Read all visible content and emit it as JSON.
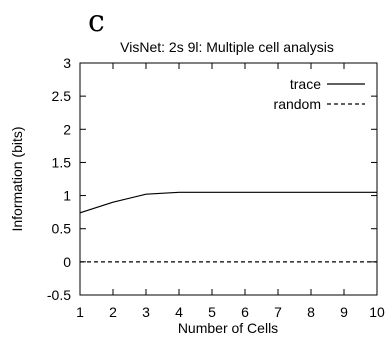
{
  "panel_letter": "c",
  "chart_data": {
    "type": "line",
    "title": "VisNet: 2s 9l: Multiple cell analysis",
    "xlabel": "Number of Cells",
    "ylabel": "Information (bits)",
    "xlim": [
      1,
      10
    ],
    "ylim": [
      -0.5,
      3
    ],
    "xticks": [
      1,
      2,
      3,
      4,
      5,
      6,
      7,
      8,
      9,
      10
    ],
    "yticks": [
      -0.5,
      0,
      0.5,
      1,
      1.5,
      2,
      2.5,
      3
    ],
    "ytick_labels": [
      "-0.5",
      "0",
      "0.5",
      "1",
      "1.5",
      "2",
      "2.5",
      "3"
    ],
    "grid": false,
    "legend_position": "top-right",
    "x": [
      1,
      2,
      3,
      4,
      5,
      6,
      7,
      8,
      9,
      10
    ],
    "series": [
      {
        "name": "trace",
        "style": "solid",
        "values": [
          0.74,
          0.9,
          1.02,
          1.05,
          1.05,
          1.05,
          1.05,
          1.05,
          1.05,
          1.05
        ]
      },
      {
        "name": "random",
        "style": "dashed",
        "values": [
          0,
          0,
          0,
          0,
          0,
          0,
          0,
          0,
          0,
          0
        ]
      }
    ]
  }
}
